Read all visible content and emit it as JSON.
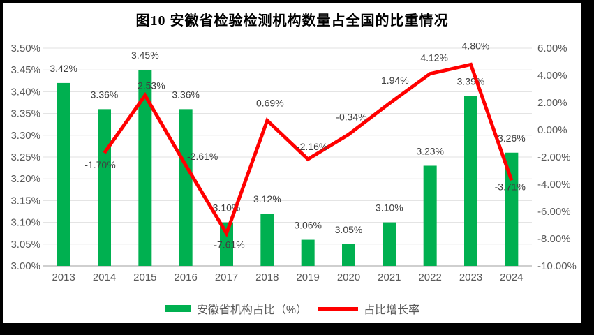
{
  "title": "图10 安徽省检验检测机构数量占全国的比重情况",
  "legend": {
    "bar_label": "安徽省机构占比（%）",
    "line_label": "占比增长率"
  },
  "chart_data": {
    "type": "bar+line combo",
    "title": "图10 安徽省检验检测机构数量占全国的比重情况",
    "categories": [
      "2013",
      "2014",
      "2015",
      "2016",
      "2017",
      "2018",
      "2019",
      "2020",
      "2021",
      "2022",
      "2023",
      "2024"
    ],
    "series": [
      {
        "name": "安徽省机构占比（%）",
        "type": "bar",
        "axis": "left",
        "color": "#00B050",
        "values": [
          3.42,
          3.36,
          3.45,
          3.36,
          3.1,
          3.12,
          3.06,
          3.05,
          3.1,
          3.23,
          3.39,
          3.26
        ],
        "labels": [
          "3.42%",
          "3.36%",
          "3.45%",
          "3.36%",
          "3.10%",
          "3.12%",
          "3.06%",
          "3.05%",
          "3.10%",
          "3.23%",
          "3.39%",
          "3.26%"
        ]
      },
      {
        "name": "占比增长率",
        "type": "line",
        "axis": "right",
        "color": "#FF0000",
        "values": [
          null,
          -1.7,
          2.53,
          -2.61,
          -7.61,
          0.69,
          -2.16,
          -0.34,
          1.94,
          4.12,
          4.8,
          -3.71
        ],
        "labels": [
          null,
          "-1.70%",
          "2.53%",
          "-2.61%",
          "-7.61%",
          "0.69%",
          "-2.16%",
          "-0.34%",
          "1.94%",
          "4.12%",
          "4.80%",
          "-3.71%"
        ],
        "label_offsets": [
          null,
          [
            -6,
            17
          ],
          [
            9,
            -14
          ],
          [
            24,
            -13
          ],
          [
            4,
            16
          ],
          [
            4,
            -25
          ],
          [
            6,
            -18
          ],
          [
            4,
            -25
          ],
          [
            8,
            -33
          ],
          [
            6,
            -23
          ],
          [
            7,
            -27
          ],
          [
            -2,
            9
          ]
        ]
      }
    ],
    "left_axis": {
      "min": 3.0,
      "max": 3.5,
      "ticks": [
        "3.50%",
        "3.45%",
        "3.40%",
        "3.35%",
        "3.30%",
        "3.25%",
        "3.20%",
        "3.15%",
        "3.10%",
        "3.05%",
        "3.00%"
      ]
    },
    "right_axis": {
      "min": -10,
      "max": 6,
      "ticks": [
        "6.00%",
        "4.00%",
        "2.00%",
        "0.00%",
        "-2.00%",
        "-4.00%",
        "-6.00%",
        "-8.00%",
        "-10.00%"
      ]
    },
    "grid": true,
    "gridline_color": "#E0E0E0",
    "axisline_color": "#BFBFBF",
    "legend_position": "bottom"
  }
}
